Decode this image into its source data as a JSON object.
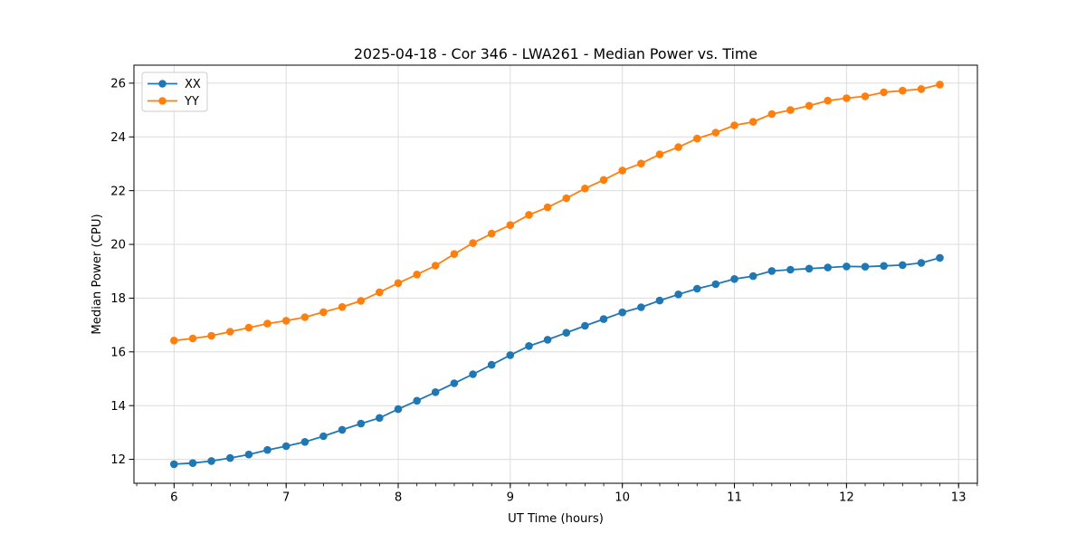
{
  "chart_data": {
    "type": "line",
    "title": "2025-04-18 - Cor 346 - LWA261 - Median Power vs. Time",
    "xlabel": "UT Time (hours)",
    "ylabel": "Median Power (CPU)",
    "xlim": [
      5.642,
      13.168
    ],
    "ylim": [
      11.11,
      26.67
    ],
    "x_ticks": [
      6,
      7,
      8,
      9,
      10,
      11,
      12,
      13
    ],
    "y_ticks": [
      12,
      14,
      16,
      18,
      20,
      22,
      24,
      26
    ],
    "x_minor_step": 0.16667,
    "grid": true,
    "legend_position": "upper left",
    "x": [
      6.0,
      6.167,
      6.333,
      6.5,
      6.667,
      6.833,
      7.0,
      7.167,
      7.333,
      7.5,
      7.667,
      7.833,
      8.0,
      8.167,
      8.333,
      8.5,
      8.667,
      8.833,
      9.0,
      9.167,
      9.333,
      9.5,
      9.667,
      9.833,
      10.0,
      10.167,
      10.333,
      10.5,
      10.667,
      10.833,
      11.0,
      11.167,
      11.333,
      11.5,
      11.667,
      11.833,
      12.0,
      12.167,
      12.333,
      12.5,
      12.667,
      12.833
    ],
    "series": [
      {
        "name": "XX",
        "color": "#1f77b4",
        "values": [
          11.82,
          11.86,
          11.94,
          12.05,
          12.18,
          12.35,
          12.49,
          12.65,
          12.86,
          13.1,
          13.33,
          13.54,
          13.87,
          14.18,
          14.5,
          14.83,
          15.17,
          15.52,
          15.88,
          16.22,
          16.45,
          16.71,
          16.97,
          17.22,
          17.47,
          17.66,
          17.91,
          18.14,
          18.35,
          18.52,
          18.71,
          18.82,
          19.01,
          19.06,
          19.1,
          19.14,
          19.18,
          19.17,
          19.2,
          19.23,
          19.31,
          19.5
        ]
      },
      {
        "name": "YY",
        "color": "#ff7f0e",
        "values": [
          16.42,
          16.5,
          16.6,
          16.75,
          16.9,
          17.05,
          17.16,
          17.29,
          17.48,
          17.67,
          17.9,
          18.22,
          18.56,
          18.88,
          19.21,
          19.64,
          20.05,
          20.4,
          20.72,
          21.1,
          21.38,
          21.72,
          22.08,
          22.4,
          22.75,
          23.01,
          23.35,
          23.62,
          23.94,
          24.16,
          24.43,
          24.56,
          24.85,
          25.0,
          25.16,
          25.35,
          25.44,
          25.51,
          25.66,
          25.72,
          25.78,
          25.95
        ]
      }
    ],
    "grid_color": "#dcdcdc"
  }
}
